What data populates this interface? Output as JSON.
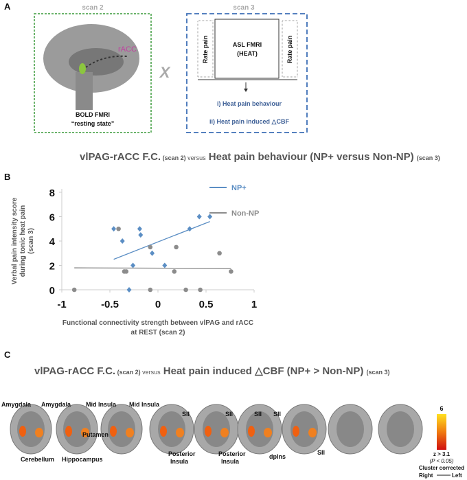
{
  "panel_a": {
    "label": "A",
    "scan2": "scan 2",
    "scan3": "scan 3",
    "racc": "rACC",
    "x_mark": "X",
    "bold": "BOLD FMRI",
    "resting": "“resting state”",
    "rate_pain_left": "Rate pain",
    "asl": "ASL FMRI",
    "heat": "(HEAT)",
    "rate_pain_right": "Rate pain",
    "outcome1": "i) Heat pain behaviour",
    "outcome2": "ii) Heat pain induced △CBF"
  },
  "panel_b": {
    "label": "B",
    "h1": "vlPAG-rACC F.C.",
    "h2": " (scan 2) ",
    "h3": "versus",
    "h4": " Heat pain behaviour (NP+ versus Non-NP) ",
    "h5": "(scan 3)"
  },
  "chart_data": {
    "type": "scatter",
    "xlabel": [
      "Functional connectivity strength between vlPAG and rACC",
      "at REST (scan 2)"
    ],
    "ylabel": [
      "Verbal pain intensity score",
      "during tonic heat pain",
      "(scan 3)"
    ],
    "xlim": [
      -1,
      1
    ],
    "xticks": [
      -1,
      -0.5,
      0,
      0.5,
      1
    ],
    "ylim": [
      0,
      8
    ],
    "yticks": [
      0,
      2,
      4,
      6,
      8
    ],
    "series": [
      {
        "name": "NP+",
        "color": "#5b8ec4",
        "marker": "diamond",
        "x": [
          -0.46,
          -0.37,
          -0.19,
          -0.18,
          -0.26,
          -0.3,
          -0.06,
          0.07,
          0.33,
          0.43,
          0.54
        ],
        "values": [
          5,
          4,
          5,
          4.5,
          2,
          0,
          3,
          2,
          5,
          6,
          6
        ],
        "trend": {
          "x": [
            -0.46,
            0.54
          ],
          "y": [
            2.5,
            5.6
          ]
        }
      },
      {
        "name": "Non-NP",
        "color": "#8c8c8c",
        "marker": "circle",
        "x": [
          -0.87,
          -0.41,
          -0.35,
          -0.33,
          -0.08,
          -0.08,
          0.17,
          0.19,
          0.29,
          0.44,
          0.64,
          0.76
        ],
        "values": [
          0,
          5,
          1.5,
          1.5,
          3.5,
          0,
          1.5,
          3.5,
          0,
          0,
          3,
          1.5
        ],
        "trend": {
          "x": [
            -0.87,
            0.76
          ],
          "y": [
            1.8,
            1.75
          ]
        }
      }
    ]
  },
  "panel_c": {
    "label": "C",
    "h1": "vlPAG-rACC F.C.",
    "h2": " (scan 2) ",
    "h3": "versus",
    "h4": " Heat pain induced  △CBF (NP+ > Non-NP) ",
    "h5": "(scan 3)",
    "regions": [
      "Amygdala",
      "Cerebellum",
      "Amygdala",
      "Hippocampus",
      "Mid Insula",
      "Putamen",
      "Mid Insula",
      "SII",
      "Posterior",
      "Insula",
      "SII",
      "Posterior",
      "Insula",
      "SII",
      "SII",
      "dpIns",
      "SII"
    ],
    "colorbar_max": "6",
    "z": "z > 3.1",
    "p": "(P < 0.05)",
    "corrected": "Cluster corrected",
    "right": "Right",
    "left": "Left"
  }
}
